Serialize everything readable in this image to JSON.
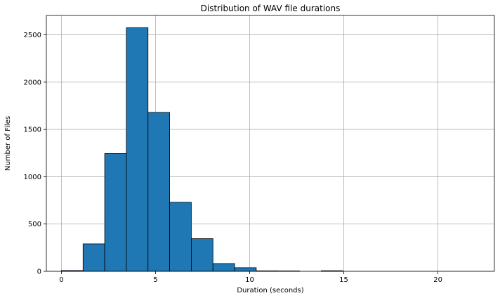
{
  "chart_data": {
    "type": "bar",
    "title": "Distribution of WAV file durations",
    "xlabel": "Duration (seconds)",
    "ylabel": "Number of Files",
    "xlim": [
      -0.8,
      23.0
    ],
    "ylim": [
      0,
      2705
    ],
    "x_ticks": [
      0,
      5,
      10,
      15,
      20
    ],
    "y_ticks": [
      0,
      500,
      1000,
      1500,
      2000,
      2500
    ],
    "grid": true,
    "bar_color": "#1f77b4",
    "edge_color": "#000000",
    "bins": [
      {
        "start": 0.0,
        "end": 1.15,
        "count": 8
      },
      {
        "start": 1.15,
        "end": 2.3,
        "count": 290
      },
      {
        "start": 2.3,
        "end": 3.45,
        "count": 1245
      },
      {
        "start": 3.45,
        "end": 4.6,
        "count": 2575
      },
      {
        "start": 4.6,
        "end": 5.75,
        "count": 1680
      },
      {
        "start": 5.75,
        "end": 6.9,
        "count": 730
      },
      {
        "start": 6.9,
        "end": 8.05,
        "count": 345
      },
      {
        "start": 8.05,
        "end": 9.2,
        "count": 82
      },
      {
        "start": 9.2,
        "end": 10.35,
        "count": 38
      },
      {
        "start": 10.35,
        "end": 11.5,
        "count": 5
      },
      {
        "start": 11.5,
        "end": 12.65,
        "count": 4
      },
      {
        "start": 12.65,
        "end": 13.8,
        "count": 0
      },
      {
        "start": 13.8,
        "end": 14.95,
        "count": 6
      },
      {
        "start": 14.95,
        "end": 16.1,
        "count": 0
      },
      {
        "start": 16.1,
        "end": 17.25,
        "count": 0
      },
      {
        "start": 17.25,
        "end": 18.4,
        "count": 0
      },
      {
        "start": 18.4,
        "end": 19.55,
        "count": 0
      },
      {
        "start": 19.55,
        "end": 20.7,
        "count": 0
      },
      {
        "start": 20.7,
        "end": 21.85,
        "count": 0
      },
      {
        "start": 21.85,
        "end": 23.0,
        "count": 0
      }
    ]
  }
}
